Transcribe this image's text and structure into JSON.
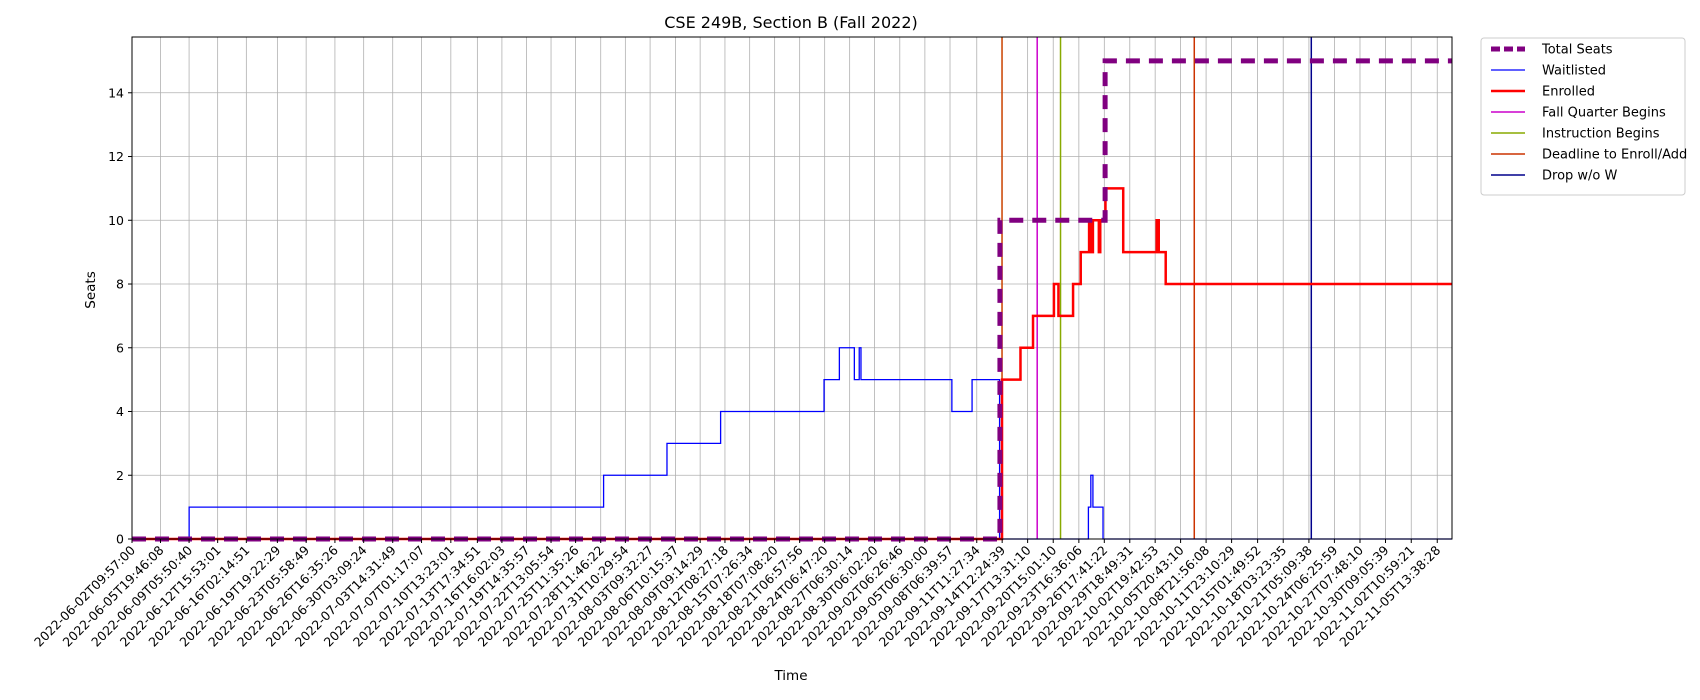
{
  "chart_data": {
    "type": "line",
    "title": "CSE 249B, Section B (Fall 2022)",
    "xlabel": "Time",
    "ylabel": "Seats",
    "x_range": [
      "2022-06-02T09:57:00",
      "2022-11-07T08:00:00"
    ],
    "ylim": [
      0,
      15.75
    ],
    "y_ticks": [
      0,
      2,
      4,
      6,
      8,
      10,
      12,
      14
    ],
    "x_ticks": [
      "2022-06-02T09:57:00",
      "2022-06-05T19:46:08",
      "2022-06-09T05:50:40",
      "2022-06-12T15:53:01",
      "2022-06-16T02:14:51",
      "2022-06-19T19:22:29",
      "2022-06-23T05:58:49",
      "2022-06-26T16:35:26",
      "2022-06-30T03:09:24",
      "2022-07-03T14:31:49",
      "2022-07-07T01:17:07",
      "2022-07-10T13:23:01",
      "2022-07-13T17:34:51",
      "2022-07-16T16:02:03",
      "2022-07-19T14:35:57",
      "2022-07-22T13:05:54",
      "2022-07-25T11:35:26",
      "2022-07-28T11:46:22",
      "2022-07-31T10:29:54",
      "2022-08-03T09:32:27",
      "2022-08-06T10:15:37",
      "2022-08-09T09:14:29",
      "2022-08-12T08:27:18",
      "2022-08-15T07:26:34",
      "2022-08-18T07:08:20",
      "2022-08-21T06:57:56",
      "2022-08-24T06:47:20",
      "2022-08-27T06:30:14",
      "2022-08-30T06:02:20",
      "2022-09-02T06:26:46",
      "2022-09-05T06:30:00",
      "2022-09-08T06:39:57",
      "2022-09-11T11:27:34",
      "2022-09-14T12:24:39",
      "2022-09-17T13:31:10",
      "2022-09-20T15:01:10",
      "2022-09-23T16:36:06",
      "2022-09-26T17:41:22",
      "2022-09-29T18:49:31",
      "2022-10-02T19:42:53",
      "2022-10-05T20:43:10",
      "2022-10-08T21:56:08",
      "2022-10-11T23:10:29",
      "2022-10-15T01:49:52",
      "2022-10-18T03:23:35",
      "2022-10-21T05:09:38",
      "2022-10-24T06:25:59",
      "2022-10-27T07:48:10",
      "2022-10-30T09:05:39",
      "2022-11-02T10:59:21",
      "2022-11-05T13:38:28"
    ],
    "grid": true,
    "legend_position": "outside-top-right",
    "series": [
      {
        "name": "Total Seats",
        "color": "#800080",
        "style": "dashed",
        "points": [
          [
            "2022-06-02T09:57:00",
            0
          ],
          [
            "2022-09-14T06:00:00",
            0
          ],
          [
            "2022-09-14T06:00:00",
            10
          ],
          [
            "2022-09-26T20:00:00",
            10
          ],
          [
            "2022-09-26T20:00:00",
            15
          ],
          [
            "2022-11-07T08:00:00",
            15
          ]
        ]
      },
      {
        "name": "Waitlisted",
        "color": "#0000ff",
        "style": "solid",
        "points": [
          [
            "2022-06-02T09:57:00",
            0
          ],
          [
            "2022-06-09T06:00:00",
            0
          ],
          [
            "2022-06-09T06:00:00",
            1
          ],
          [
            "2022-07-28T20:00:00",
            1
          ],
          [
            "2022-07-28T20:00:00",
            2
          ],
          [
            "2022-08-05T10:00:00",
            2
          ],
          [
            "2022-08-05T10:00:00",
            3
          ],
          [
            "2022-08-11T20:00:00",
            3
          ],
          [
            "2022-08-11T20:00:00",
            4
          ],
          [
            "2022-08-24T05:00:00",
            4
          ],
          [
            "2022-08-24T05:00:00",
            5
          ],
          [
            "2022-08-26T01:00:00",
            5
          ],
          [
            "2022-08-26T01:00:00",
            6
          ],
          [
            "2022-08-27T20:00:00",
            6
          ],
          [
            "2022-08-27T20:00:00",
            5
          ],
          [
            "2022-08-28T10:00:00",
            5
          ],
          [
            "2022-08-28T10:00:00",
            6
          ],
          [
            "2022-08-28T15:00:00",
            6
          ],
          [
            "2022-08-28T15:00:00",
            5
          ],
          [
            "2022-09-08T12:00:00",
            5
          ],
          [
            "2022-09-08T12:00:00",
            4
          ],
          [
            "2022-09-10T22:00:00",
            4
          ],
          [
            "2022-09-10T22:00:00",
            5
          ],
          [
            "2022-09-14T05:00:00",
            5
          ],
          [
            "2022-09-14T05:00:00",
            0
          ],
          [
            "2022-09-24T20:00:00",
            0
          ],
          [
            "2022-09-24T20:00:00",
            1
          ],
          [
            "2022-09-25T03:00:00",
            1
          ],
          [
            "2022-09-25T03:00:00",
            2
          ],
          [
            "2022-09-25T09:00:00",
            2
          ],
          [
            "2022-09-25T09:00:00",
            1
          ],
          [
            "2022-09-26T14:00:00",
            1
          ],
          [
            "2022-09-26T14:00:00",
            0
          ],
          [
            "2022-11-07T08:00:00",
            0
          ]
        ]
      },
      {
        "name": "Enrolled",
        "color": "#ff0000",
        "style": "solid",
        "points": [
          [
            "2022-06-02T09:57:00",
            0
          ],
          [
            "2022-09-14T12:00:00",
            0
          ],
          [
            "2022-09-14T12:00:00",
            5
          ],
          [
            "2022-09-16T17:00:00",
            5
          ],
          [
            "2022-09-16T17:00:00",
            6
          ],
          [
            "2022-09-18T05:00:00",
            6
          ],
          [
            "2022-09-18T05:00:00",
            7
          ],
          [
            "2022-09-20T17:00:00",
            7
          ],
          [
            "2022-09-20T17:00:00",
            8
          ],
          [
            "2022-09-21T06:00:00",
            8
          ],
          [
            "2022-09-21T06:00:00",
            7
          ],
          [
            "2022-09-23T00:00:00",
            7
          ],
          [
            "2022-09-23T00:00:00",
            8
          ],
          [
            "2022-09-23T22:00:00",
            8
          ],
          [
            "2022-09-23T22:00:00",
            9
          ],
          [
            "2022-09-24T22:00:00",
            9
          ],
          [
            "2022-09-24T22:00:00",
            10
          ],
          [
            "2022-09-25T05:00:00",
            10
          ],
          [
            "2022-09-25T05:00:00",
            9
          ],
          [
            "2022-09-25T09:00:00",
            9
          ],
          [
            "2022-09-25T09:00:00",
            10
          ],
          [
            "2022-09-26T02:00:00",
            10
          ],
          [
            "2022-09-26T02:00:00",
            9
          ],
          [
            "2022-09-26T06:00:00",
            9
          ],
          [
            "2022-09-26T06:00:00",
            10
          ],
          [
            "2022-09-26T21:00:00",
            10
          ],
          [
            "2022-09-26T21:00:00",
            11
          ],
          [
            "2022-09-29T00:00:00",
            11
          ],
          [
            "2022-09-29T00:00:00",
            9
          ],
          [
            "2022-10-03T00:00:00",
            9
          ],
          [
            "2022-10-03T00:00:00",
            10
          ],
          [
            "2022-10-03T06:00:00",
            10
          ],
          [
            "2022-10-03T06:00:00",
            9
          ],
          [
            "2022-10-04T02:00:00",
            9
          ],
          [
            "2022-10-04T02:00:00",
            8
          ],
          [
            "2022-11-07T08:00:00",
            8
          ]
        ]
      }
    ],
    "vertical_markers": [
      {
        "name": "Fall Quarter Begins",
        "color": "#cc00cc",
        "x": "2022-09-18T17:00:00"
      },
      {
        "name": "Instruction Begins",
        "color": "#88aa00",
        "x": "2022-09-21T12:00:00"
      },
      {
        "name": "Deadline to Enroll/Add",
        "color": "#cc3300",
        "x": "2022-10-07T12:00:00"
      },
      {
        "name": "Drop w/o W",
        "color": "#00008b",
        "x": "2022-10-21T12:00:00"
      }
    ],
    "extra_marker": {
      "color": "#cc4400",
      "x": "2022-09-14T12:00:00"
    }
  }
}
